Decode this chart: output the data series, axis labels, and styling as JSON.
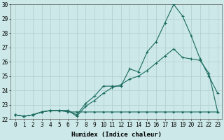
{
  "xlabel": "Humidex (Indice chaleur)",
  "ylabel": "",
  "x": [
    0,
    1,
    2,
    3,
    4,
    5,
    6,
    7,
    8,
    9,
    10,
    11,
    12,
    13,
    14,
    15,
    16,
    17,
    18,
    19,
    20,
    21,
    22,
    23
  ],
  "line1": [
    22.3,
    22.2,
    22.3,
    22.5,
    22.6,
    22.6,
    22.6,
    22.3,
    23.1,
    23.6,
    24.3,
    24.3,
    24.3,
    25.5,
    25.3,
    26.7,
    27.4,
    28.7,
    30.0,
    29.2,
    27.8,
    26.2,
    25.0,
    23.8
  ],
  "line2": [
    22.3,
    22.2,
    22.3,
    22.5,
    22.6,
    22.6,
    22.6,
    22.2,
    22.9,
    23.3,
    23.8,
    24.2,
    24.4,
    24.8,
    25.0,
    25.4,
    25.9,
    26.4,
    26.9,
    26.3,
    26.2,
    26.1,
    25.2,
    22.5
  ],
  "line3": [
    22.3,
    22.2,
    22.3,
    22.5,
    22.6,
    22.6,
    22.5,
    22.5,
    22.5,
    22.5,
    22.5,
    22.5,
    22.5,
    22.5,
    22.5,
    22.5,
    22.5,
    22.5,
    22.5,
    22.5,
    22.5,
    22.5,
    22.5,
    22.5
  ],
  "line_color": "#1a6b5e",
  "bg_color": "#cce8e8",
  "grid_color": "#b0cccc",
  "ylim": [
    22,
    30
  ],
  "yticks": [
    22,
    23,
    24,
    25,
    26,
    27,
    28,
    29,
    30
  ],
  "xticks": [
    0,
    1,
    2,
    3,
    4,
    5,
    6,
    7,
    8,
    9,
    10,
    11,
    12,
    13,
    14,
    15,
    16,
    17,
    18,
    19,
    20,
    21,
    22,
    23
  ],
  "tick_fontsize": 5.5,
  "axis_label_fontsize": 6.5
}
